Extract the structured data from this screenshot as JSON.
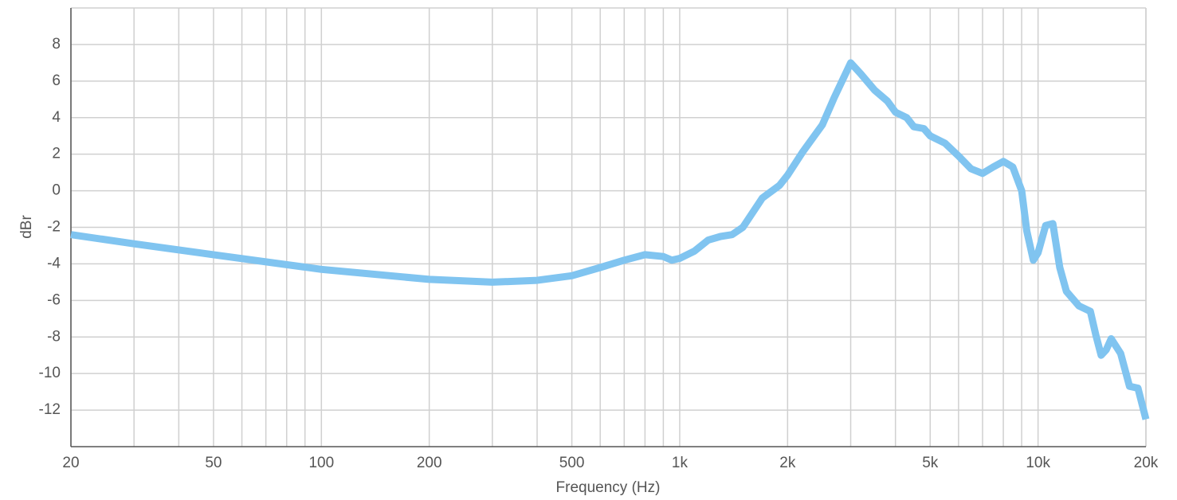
{
  "chart_data": {
    "type": "line",
    "x_label": "Frequency (Hz)",
    "y_label": "dBr",
    "xscale": "log",
    "color": "#80c4f0",
    "grid": true,
    "x": [
      20,
      30,
      50,
      100,
      200,
      300,
      400,
      500,
      600,
      700,
      800,
      900,
      950,
      1000,
      1100,
      1200,
      1300,
      1400,
      1500,
      1700,
      1900,
      2000,
      2200,
      2500,
      2700,
      3000,
      3200,
      3500,
      3800,
      4000,
      4300,
      4500,
      4800,
      5000,
      5500,
      6000,
      6500,
      7000,
      7500,
      8000,
      8500,
      9000,
      9300,
      9700,
      10000,
      10500,
      11000,
      11500,
      12000,
      13000,
      14000,
      14500,
      15000,
      15500,
      16000,
      17000,
      18000,
      19000,
      20000
    ],
    "values": [
      -2.4,
      -2.9,
      -3.5,
      -4.3,
      -4.85,
      -5.0,
      -4.9,
      -4.65,
      -4.2,
      -3.8,
      -3.5,
      -3.6,
      -3.8,
      -3.7,
      -3.3,
      -2.7,
      -2.5,
      -2.4,
      -2.0,
      -0.4,
      0.3,
      0.85,
      2.1,
      3.6,
      5.1,
      7.0,
      6.4,
      5.5,
      4.9,
      4.3,
      4.0,
      3.5,
      3.4,
      3.0,
      2.6,
      1.9,
      1.2,
      0.95,
      1.3,
      1.6,
      1.3,
      0,
      -2.2,
      -3.8,
      -3.4,
      -1.9,
      -1.8,
      -4.2,
      -5.5,
      -6.3,
      -6.6,
      -7.9,
      -9.0,
      -8.7,
      -8.1,
      -8.9,
      -10.7,
      -10.8,
      -12.5
    ],
    "xlim": [
      20,
      20000
    ],
    "ylim": [
      -14,
      10
    ],
    "xticks": [
      20,
      50,
      100,
      200,
      500,
      {
        "value": 1000,
        "label": "1k"
      },
      {
        "value": 2000,
        "label": "2k"
      },
      {
        "value": 5000,
        "label": "5k"
      },
      {
        "value": 10000,
        "label": "10k"
      },
      {
        "value": 20000,
        "label": "20k"
      }
    ],
    "xminorticks": [
      30,
      40,
      60,
      70,
      80,
      90,
      300,
      400,
      600,
      700,
      800,
      900,
      3000,
      4000,
      6000,
      7000,
      8000,
      9000
    ],
    "yticks": [
      -12,
      -10,
      -8,
      -6,
      -4,
      -2,
      0,
      2,
      4,
      6,
      8
    ]
  }
}
